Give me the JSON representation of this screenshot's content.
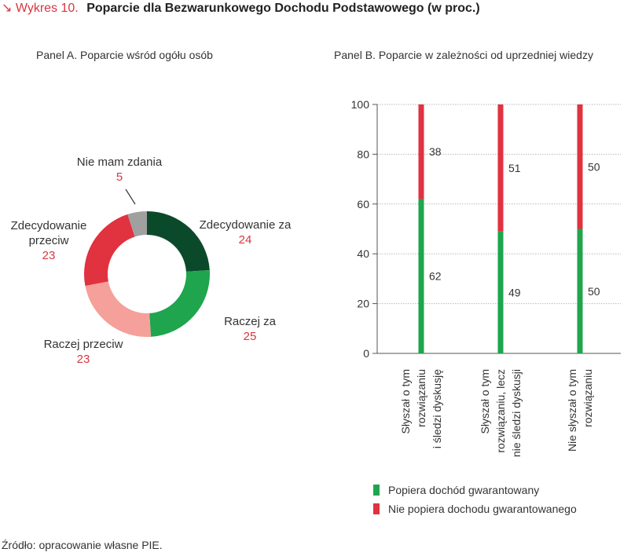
{
  "header": {
    "label": "↘ Wykres 10.",
    "title": "Poparcie dla Bezwarunkowego Dochodu Podstawowego (w proc.)"
  },
  "source": "Źródło: opracowanie własne PIE.",
  "colors": {
    "dark_green": "#0a4a2a",
    "green": "#1fa54e",
    "light_red": "#f5a09a",
    "red": "#e0323f",
    "grey": "#a0a0a0",
    "accent_text": "#d7373f"
  },
  "chart_data": [
    {
      "type": "pie",
      "title": "Panel A. Poparcie wśród ogółu osób",
      "slices": [
        {
          "label": "Zdecydowanie za",
          "value": 24,
          "color": "#0a4a2a"
        },
        {
          "label": "Raczej za",
          "value": 25,
          "color": "#1fa54e"
        },
        {
          "label": "Raczej przeciw",
          "value": 23,
          "color": "#f5a09a"
        },
        {
          "label": "Zdecydowanie przeciw",
          "value": 23,
          "color": "#e0323f"
        },
        {
          "label": "Nie mam zdania",
          "value": 5,
          "color": "#a0a0a0"
        }
      ]
    },
    {
      "type": "bar",
      "stacked": true,
      "title": "Panel B. Poparcie w zależności od uprzedniej wiedzy",
      "categories": [
        "Słyszał o tym rozwiązaniu i śledzi dyskusję",
        "Słyszał o tym rozwiązaniu, lecz nie śledzi dyskusji",
        "Nie słyszał o tym rozwiązaniu"
      ],
      "category_lines": [
        [
          "Słyszał o tym",
          "rozwiązaniu",
          "i śledzi dyskusję"
        ],
        [
          "Słyszał o tym",
          "rozwiązaniu, lecz",
          "nie śledzi dyskusji"
        ],
        [
          "Nie słyszał o tym",
          "rozwiązaniu"
        ]
      ],
      "series": [
        {
          "name": "Popiera dochód gwarantowany",
          "values": [
            62,
            49,
            50
          ],
          "color": "#1fa54e"
        },
        {
          "name": "Nie popiera dochodu gwarantowanego",
          "values": [
            38,
            51,
            50
          ],
          "color": "#e0323f"
        }
      ],
      "ylim": [
        0,
        100
      ],
      "yticks": [
        0,
        20,
        40,
        60,
        80,
        100
      ],
      "grid": true,
      "legend": "bottom"
    }
  ]
}
